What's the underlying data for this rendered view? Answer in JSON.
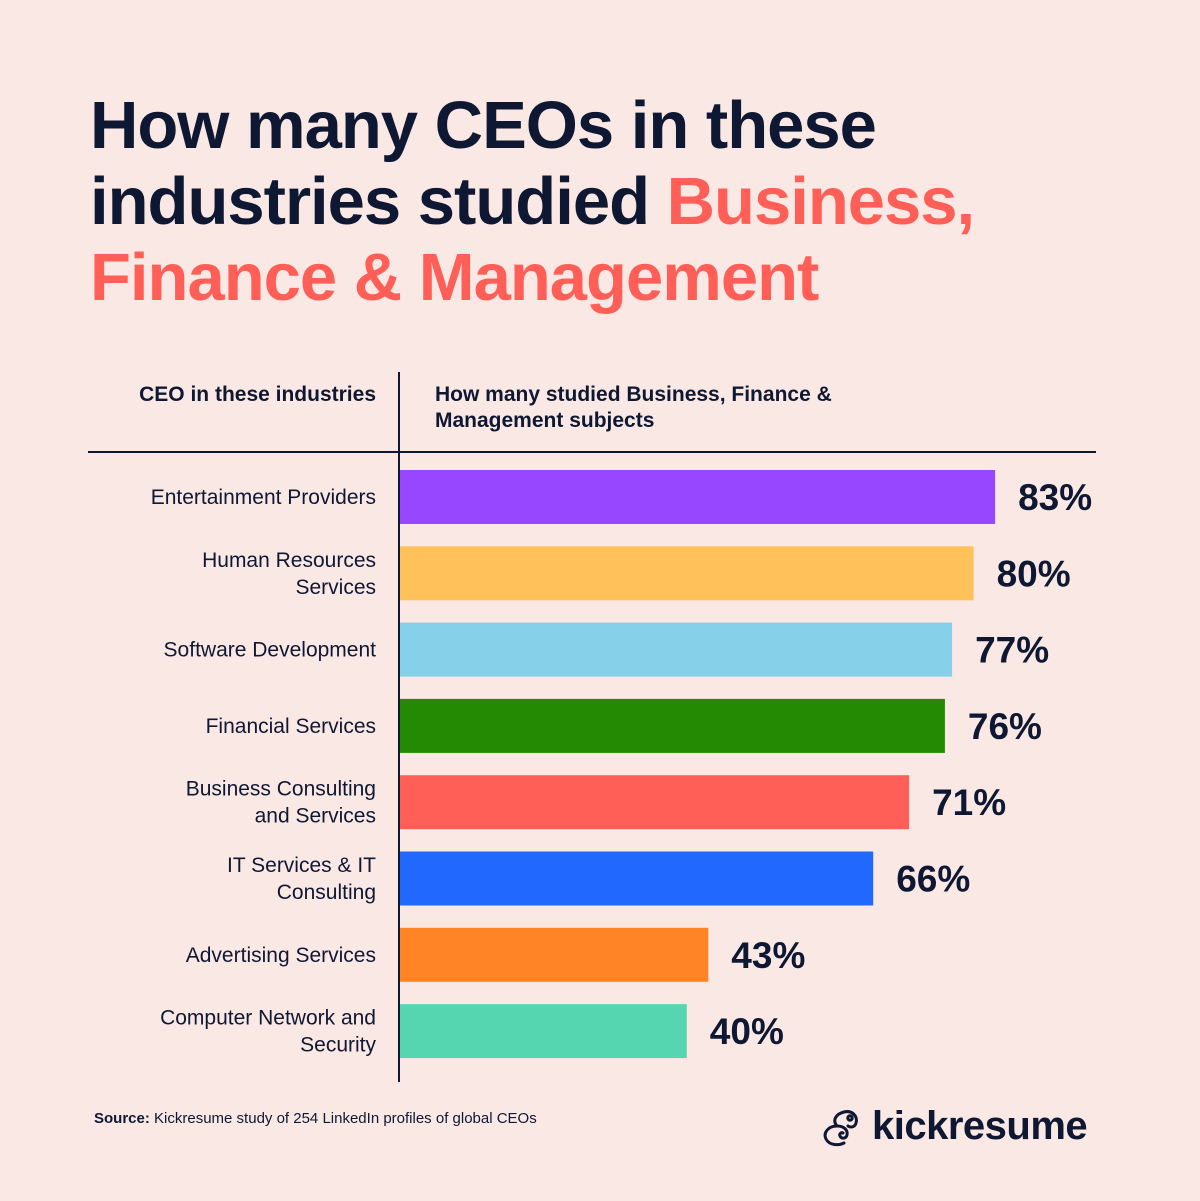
{
  "title": {
    "part1": "How many CEOs in these industries studied ",
    "highlight": "Business, Finance & Management",
    "highlight_color": "#ff5f57"
  },
  "chart_data": {
    "type": "bar",
    "orientation": "horizontal",
    "column_header_left": "CEO in these industries",
    "column_header_right": "How many studied Business, Finance & Management subjects",
    "categories": [
      [
        "Entertainment Providers"
      ],
      [
        "Human Resources",
        "Services"
      ],
      [
        "Software Development"
      ],
      [
        "Financial Services"
      ],
      [
        "Business Consulting",
        "and Services"
      ],
      [
        "IT Services & IT",
        "Consulting"
      ],
      [
        "Advertising Services"
      ],
      [
        "Computer Network and",
        "Security"
      ]
    ],
    "values": [
      83,
      80,
      77,
      76,
      71,
      66,
      43,
      40
    ],
    "value_labels": [
      "83%",
      "80%",
      "77%",
      "76%",
      "71%",
      "66%",
      "43%",
      "40%"
    ],
    "colors": [
      "#9747ff",
      "#ffc15a",
      "#86d1e9",
      "#248a03",
      "#ff5f57",
      "#2168ff",
      "#ff8425",
      "#55d6b0"
    ],
    "unit": "%",
    "xlim": [
      0,
      100
    ],
    "grid": false
  },
  "source": {
    "label": "Source:",
    "text": "Kickresume study of 254 LinkedIn profiles of global CEOs"
  },
  "logo": {
    "text": "kickresume",
    "icon": "chameleon-logo-icon"
  }
}
